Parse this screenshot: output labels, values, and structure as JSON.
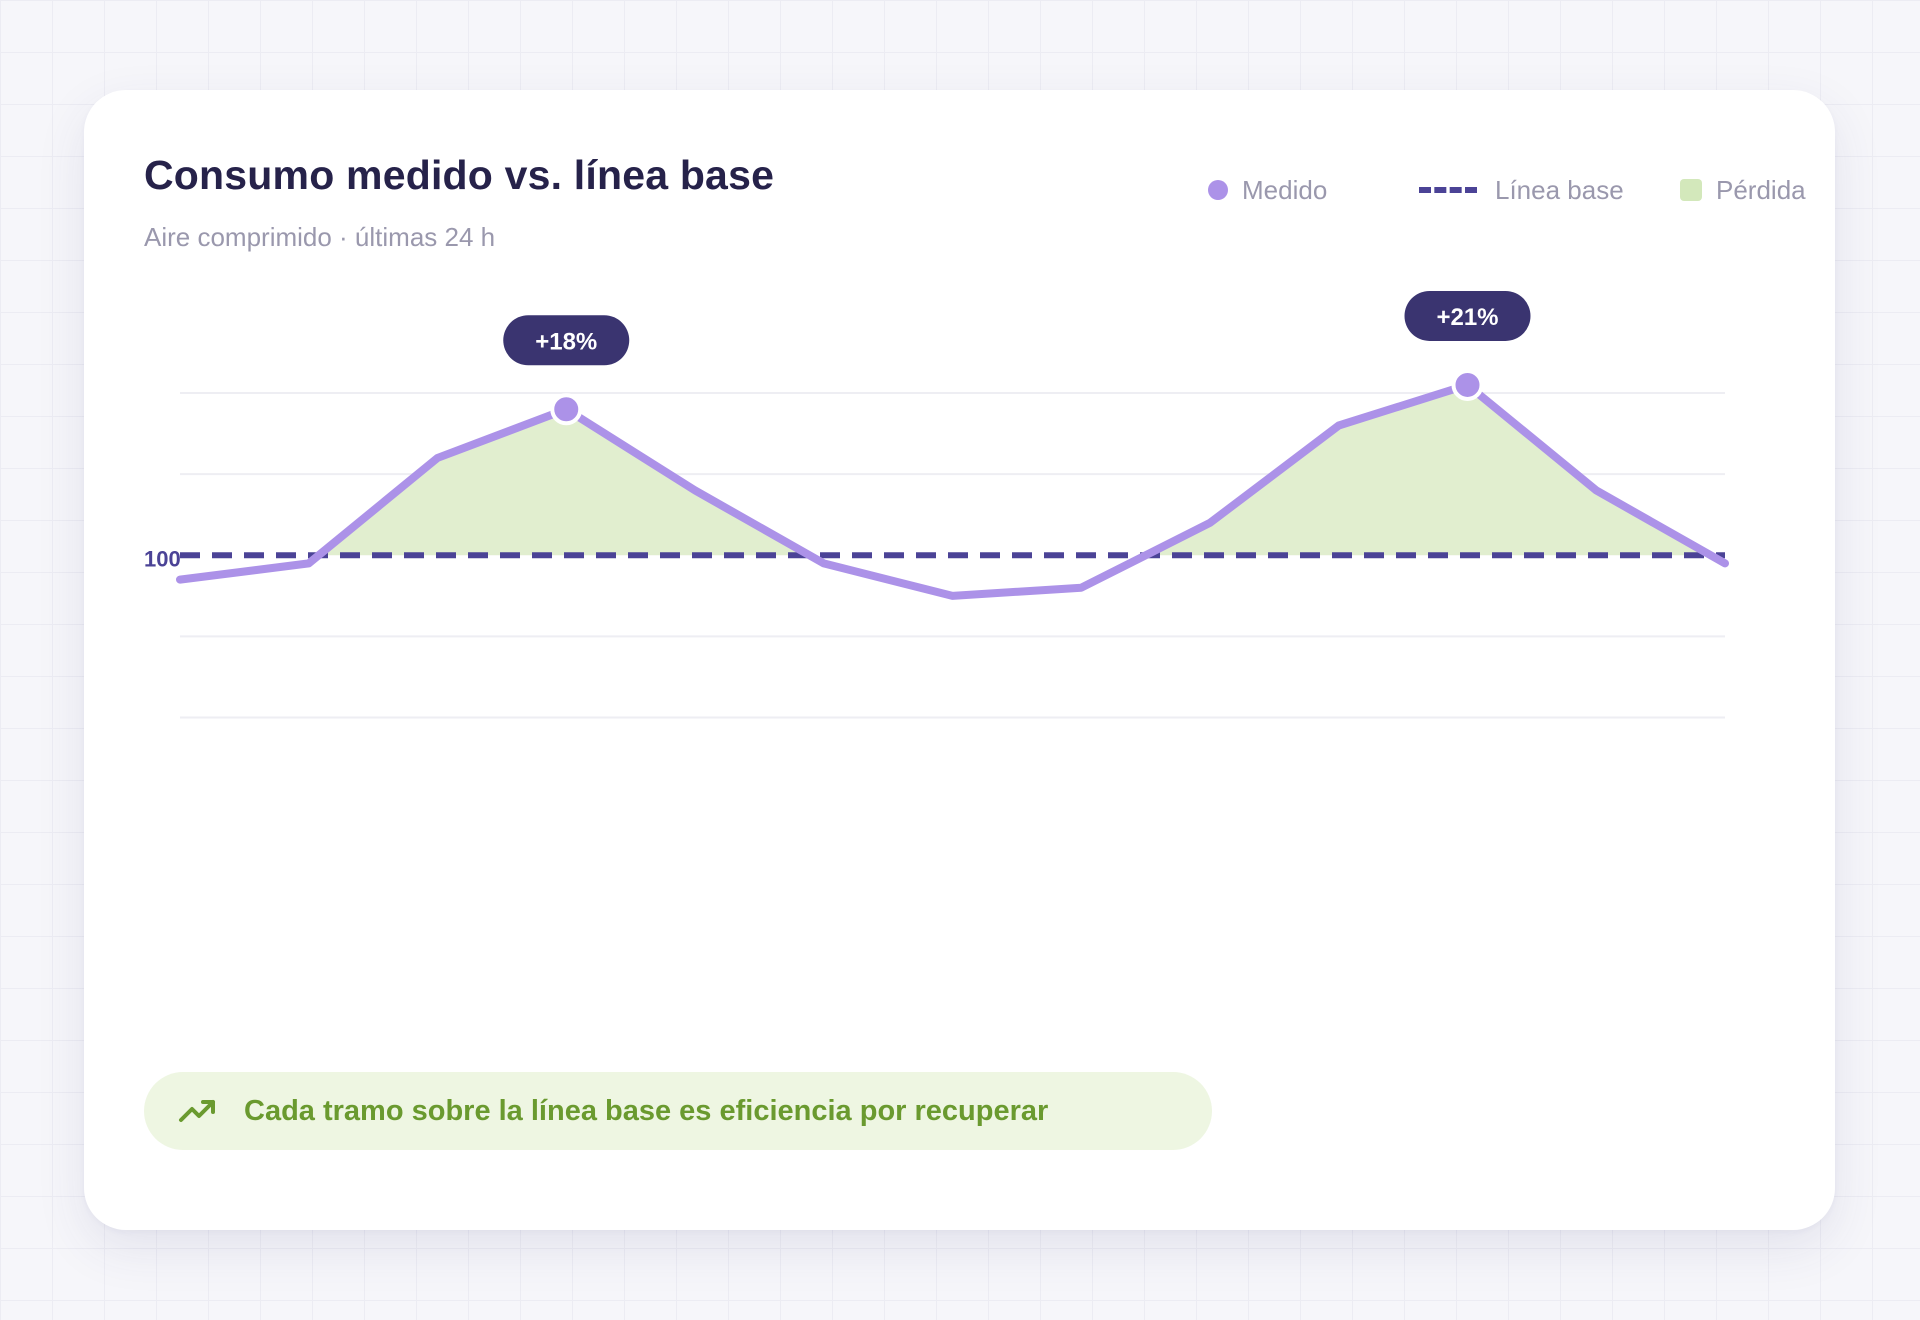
{
  "header": {
    "title": "Consumo medido vs. línea base",
    "subtitle": "Aire comprimido · últimas 24 h"
  },
  "legend": {
    "measured": "Medido",
    "baseline": "Línea base",
    "loss": "Pérdida"
  },
  "colors": {
    "measured": "#ac92e8",
    "baseline": "#4b4396",
    "loss_fill": "#e1eecf",
    "loss_swatch": "#d3e8bb",
    "badge": "#3a3470",
    "callout_text": "#6a9a2f"
  },
  "chart_data": {
    "type": "line",
    "title": "Consumo medido vs. línea base",
    "subtitle": "Aire comprimido · últimas 24 h",
    "x_index": [
      0,
      1,
      2,
      3,
      4,
      5,
      6,
      7,
      8,
      9,
      10,
      11,
      12
    ],
    "series": [
      {
        "name": "Medido",
        "values": [
          97,
          99,
          112,
          118,
          108,
          99,
          95,
          96,
          104,
          116,
          121,
          108,
          99
        ]
      },
      {
        "name": "Línea base",
        "values": [
          100,
          100,
          100,
          100,
          100,
          100,
          100,
          100,
          100,
          100,
          100,
          100,
          100
        ],
        "style": "dashed"
      }
    ],
    "baseline_value": 100,
    "baseline_label": "100",
    "ylim": [
      80,
      125
    ],
    "gridlines": [
      80,
      90,
      110,
      120
    ],
    "fill_between": "Pérdida",
    "annotations": [
      {
        "index": 3,
        "label": "+18%"
      },
      {
        "index": 10,
        "label": "+21%"
      }
    ],
    "grid": true,
    "legend_position": "top-right"
  },
  "callout": {
    "icon": "trending-up-icon",
    "text": "Cada tramo sobre la línea base es eficiencia por recuperar"
  }
}
